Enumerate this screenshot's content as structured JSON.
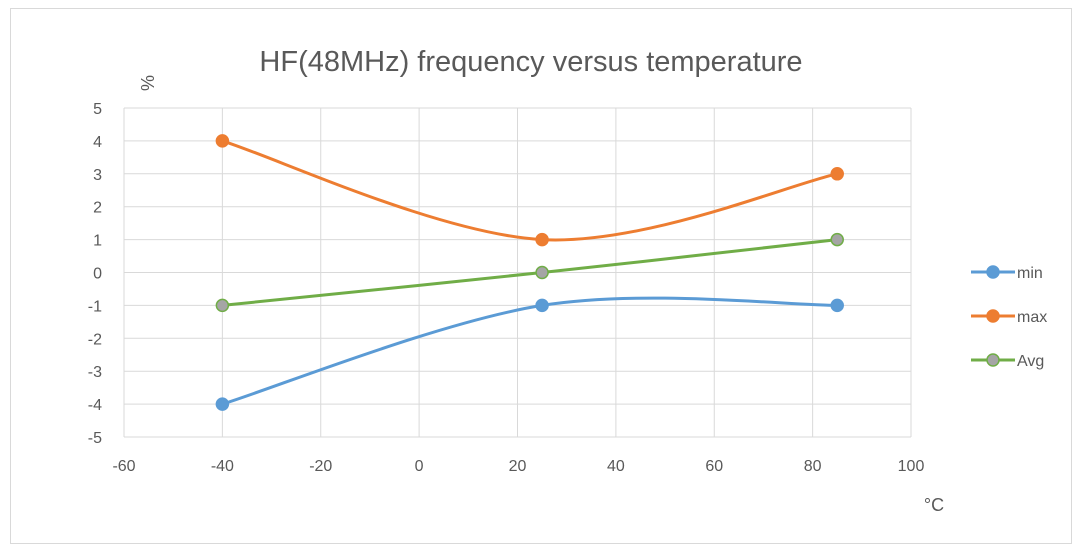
{
  "chart_data": {
    "type": "line",
    "title": "HF(48MHz) frequency versus temperature",
    "ylabel": "%",
    "xlabel": "°C",
    "xlim": [
      -60,
      100
    ],
    "ylim": [
      -5,
      5
    ],
    "x_ticks": [
      -60,
      -40,
      -20,
      0,
      20,
      40,
      60,
      80,
      100
    ],
    "y_ticks": [
      5,
      4,
      3,
      2,
      1,
      0,
      -1,
      -2,
      -3,
      -4,
      -5
    ],
    "grid": true,
    "smooth": true,
    "legend_position": "right",
    "x": [
      -40,
      25,
      85
    ],
    "series": [
      {
        "name": "min",
        "values": [
          -4,
          -1,
          -1
        ],
        "color": "#5b9bd5"
      },
      {
        "name": "max",
        "values": [
          4,
          1,
          3
        ],
        "color": "#ed7d31"
      },
      {
        "name": "Avg",
        "values": [
          -1,
          0,
          1
        ],
        "color": "#70ad47",
        "marker_fill": "#a5a5a5"
      }
    ]
  }
}
